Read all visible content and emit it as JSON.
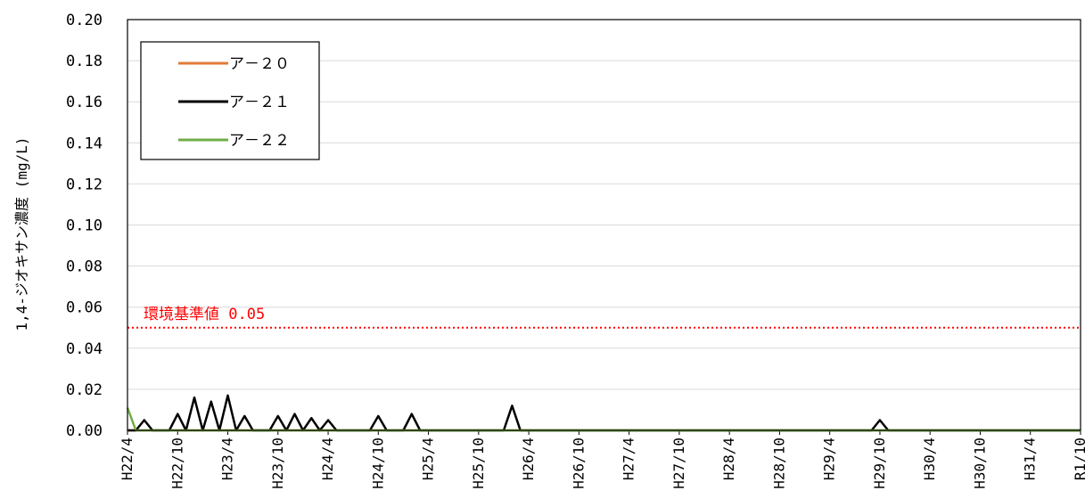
{
  "chart_data": {
    "type": "line",
    "ylabel": "1,4-ジオキサン濃度 (mg/L)",
    "xlabel": "",
    "ylim": [
      0,
      0.2
    ],
    "yticks": [
      "0.00",
      "0.02",
      "0.04",
      "0.06",
      "0.08",
      "0.10",
      "0.12",
      "0.14",
      "0.16",
      "0.18",
      "0.20"
    ],
    "grid": true,
    "legend_position": "top-left",
    "x_tick_labels": [
      "H22/4",
      "H22/10",
      "H23/4",
      "H23/10",
      "H24/4",
      "H24/10",
      "H25/4",
      "H25/10",
      "H26/4",
      "H26/10",
      "H27/4",
      "H27/10",
      "H28/4",
      "H28/10",
      "H29/4",
      "H29/10",
      "H30/4",
      "H30/10",
      "H31/4",
      "R1/10"
    ],
    "points_per_period": 6,
    "reference_line": {
      "label": "環境基準値 0.05",
      "value": 0.05,
      "color": "#ff0000",
      "style": "dotted"
    },
    "series": [
      {
        "name": "ア－２０",
        "color": "#e07b39",
        "values": [
          0,
          0,
          0,
          0,
          0,
          0,
          0,
          0,
          0,
          0,
          0,
          0,
          0,
          0,
          0,
          0,
          0,
          0,
          0,
          0,
          0,
          0,
          0,
          0,
          0,
          0,
          0,
          0,
          0,
          0,
          0,
          0,
          0,
          0,
          0,
          0,
          0,
          0,
          0,
          0,
          0,
          0,
          0,
          0,
          0,
          0,
          0,
          0,
          0,
          0,
          0,
          0,
          0,
          0,
          0,
          0,
          0,
          0,
          0,
          0,
          0,
          0,
          0,
          0,
          0,
          0,
          0,
          0,
          0,
          0,
          0,
          0,
          0,
          0,
          0,
          0,
          0,
          0,
          0,
          0,
          0,
          0,
          0,
          0,
          0,
          0,
          0,
          0,
          0,
          0,
          0,
          0,
          0,
          0,
          0,
          0,
          0,
          0,
          0,
          0,
          0,
          0,
          0,
          0,
          0,
          0,
          0,
          0,
          0,
          0,
          0,
          0,
          0,
          0,
          0
        ]
      },
      {
        "name": "ア－２１",
        "color": "#000000",
        "values": [
          0,
          0,
          0.005,
          0,
          0,
          0,
          0.008,
          0,
          0.016,
          0,
          0.014,
          0,
          0.017,
          0,
          0.007,
          0,
          0,
          0,
          0.007,
          0,
          0.008,
          0,
          0.006,
          0,
          0.005,
          0,
          0,
          0,
          0,
          0,
          0.007,
          0,
          0,
          0,
          0.008,
          0,
          0,
          0,
          0,
          0,
          0,
          0,
          0,
          0,
          0,
          0,
          0.012,
          0,
          0,
          0,
          0,
          0,
          0,
          0,
          0,
          0,
          0,
          0,
          0,
          0,
          0,
          0,
          0,
          0,
          0,
          0,
          0,
          0,
          0,
          0,
          0,
          0,
          0,
          0,
          0,
          0,
          0,
          0,
          0,
          0,
          0,
          0,
          0,
          0,
          0,
          0,
          0,
          0,
          0,
          0,
          0.005,
          0,
          0,
          0,
          0,
          0,
          0,
          0,
          0,
          0,
          0,
          0,
          0,
          0,
          0,
          0,
          0,
          0,
          0,
          0,
          0,
          0,
          0,
          0,
          0
        ]
      },
      {
        "name": "ア－２２",
        "color": "#70ad47",
        "values": [
          0.011,
          0,
          0,
          0,
          0,
          0,
          0,
          0,
          0,
          0,
          0,
          0,
          0,
          0,
          0,
          0,
          0,
          0,
          0,
          0,
          0,
          0,
          0,
          0,
          0,
          0,
          0,
          0,
          0,
          0,
          0,
          0,
          0,
          0,
          0,
          0,
          0,
          0,
          0,
          0,
          0,
          0,
          0,
          0,
          0,
          0,
          0,
          0,
          0,
          0,
          0,
          0,
          0,
          0,
          0,
          0,
          0,
          0,
          0,
          0,
          0,
          0,
          0,
          0,
          0,
          0,
          0,
          0,
          0,
          0,
          0,
          0,
          0,
          0,
          0,
          0,
          0,
          0,
          0,
          0,
          0,
          0,
          0,
          0,
          0,
          0,
          0,
          0,
          0,
          0,
          0,
          0,
          0,
          0,
          0,
          0,
          0,
          0,
          0,
          0,
          0,
          0,
          0,
          0,
          0,
          0,
          0,
          0,
          0,
          0,
          0,
          0,
          0,
          0,
          0
        ]
      }
    ]
  }
}
